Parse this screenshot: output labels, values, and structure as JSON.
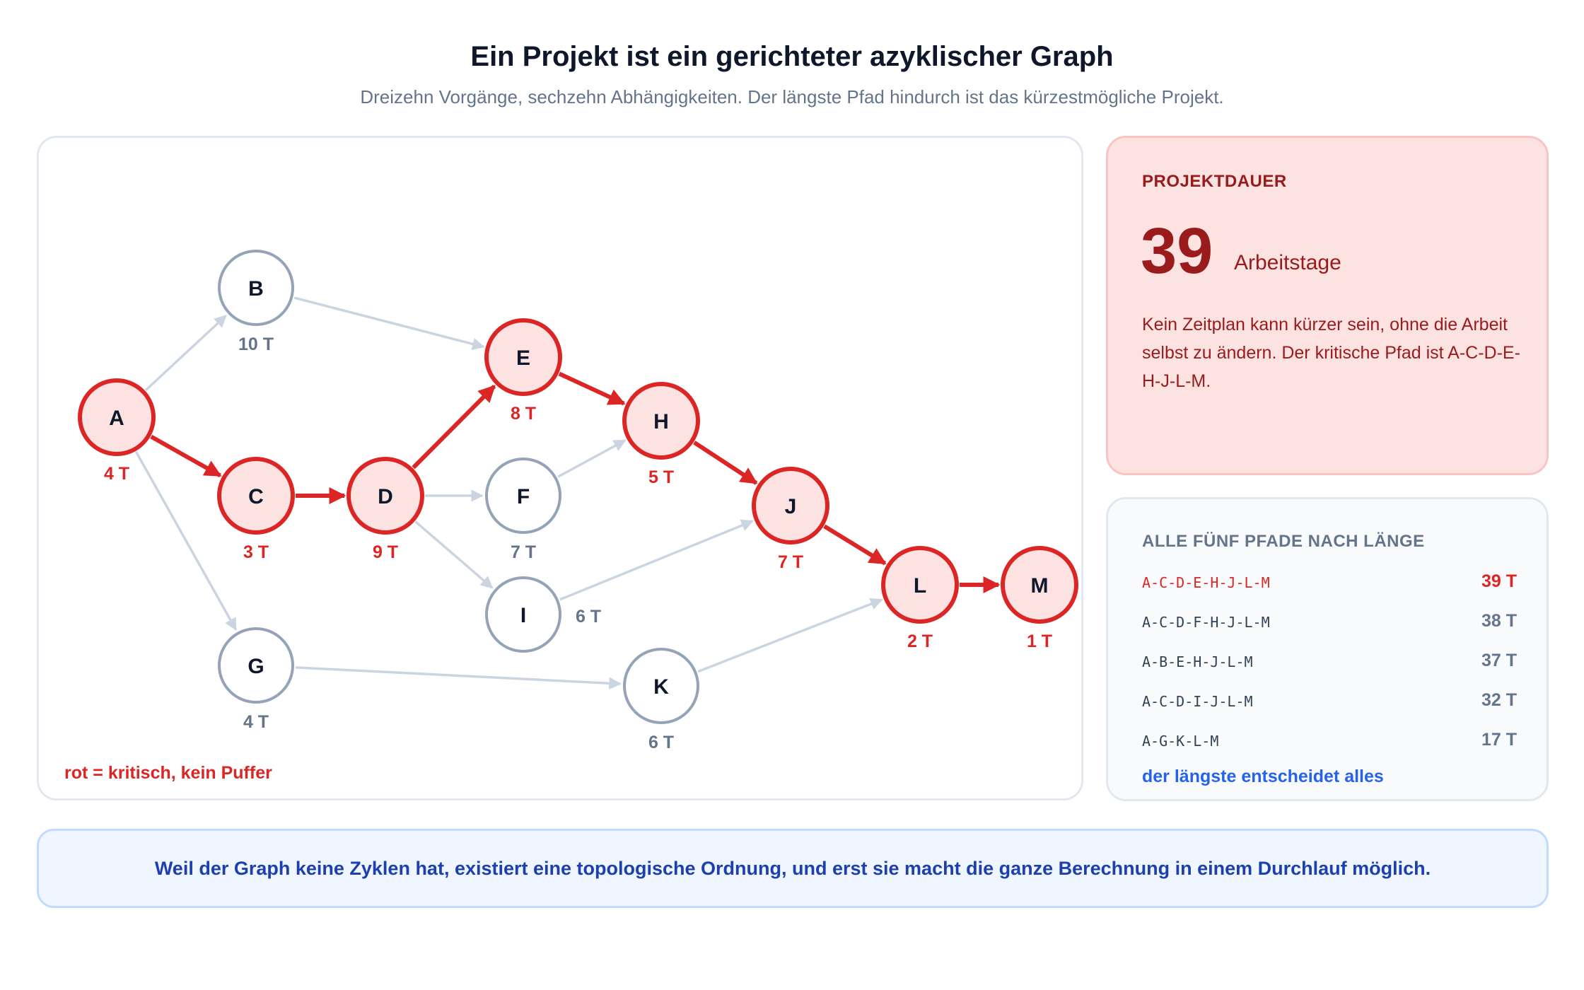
{
  "header": {
    "title": "Ein Projekt ist ein gerichteter azyklischer Graph",
    "subtitle": "Dreizehn Vorgänge, sechzehn Abhängigkeiten. Der längste Pfad hindurch ist das kürzestmögliche Projekt."
  },
  "graph": {
    "legend": "rot = kritisch, kein Puffer",
    "colors": {
      "critical_stroke": "#dc2626",
      "critical_fill": "#fde2e2",
      "normal_stroke": "#94a3b8",
      "normal_fill": "#ffffff",
      "edge_normal": "#cbd5e1",
      "critical_text": "#dc2626",
      "normal_text": "#64748b"
    },
    "nodes": [
      {
        "id": "A",
        "duration": "4 T",
        "critical": true
      },
      {
        "id": "B",
        "duration": "10 T",
        "critical": false
      },
      {
        "id": "C",
        "duration": "3 T",
        "critical": true
      },
      {
        "id": "D",
        "duration": "9 T",
        "critical": true
      },
      {
        "id": "E",
        "duration": "8 T",
        "critical": true
      },
      {
        "id": "F",
        "duration": "7 T",
        "critical": false
      },
      {
        "id": "G",
        "duration": "4 T",
        "critical": false
      },
      {
        "id": "H",
        "duration": "5 T",
        "critical": true
      },
      {
        "id": "I",
        "duration": "6 T",
        "critical": false
      },
      {
        "id": "J",
        "duration": "7 T",
        "critical": true
      },
      {
        "id": "K",
        "duration": "6 T",
        "critical": false
      },
      {
        "id": "L",
        "duration": "2 T",
        "critical": true
      },
      {
        "id": "M",
        "duration": "1 T",
        "critical": true
      }
    ],
    "edges": [
      {
        "from": "A",
        "to": "B",
        "critical": false
      },
      {
        "from": "A",
        "to": "C",
        "critical": true
      },
      {
        "from": "A",
        "to": "G",
        "critical": false
      },
      {
        "from": "B",
        "to": "E",
        "critical": false
      },
      {
        "from": "C",
        "to": "D",
        "critical": true
      },
      {
        "from": "D",
        "to": "E",
        "critical": true
      },
      {
        "from": "D",
        "to": "F",
        "critical": false
      },
      {
        "from": "D",
        "to": "I",
        "critical": false
      },
      {
        "from": "E",
        "to": "H",
        "critical": true
      },
      {
        "from": "F",
        "to": "H",
        "critical": false
      },
      {
        "from": "H",
        "to": "J",
        "critical": true
      },
      {
        "from": "I",
        "to": "J",
        "critical": false
      },
      {
        "from": "G",
        "to": "K",
        "critical": false
      },
      {
        "from": "J",
        "to": "L",
        "critical": true
      },
      {
        "from": "K",
        "to": "L",
        "critical": false
      },
      {
        "from": "L",
        "to": "M",
        "critical": true
      }
    ]
  },
  "duration_card": {
    "label": "PROJEKTDAUER",
    "value": "39",
    "unit": "Arbeitstage",
    "text": "Kein Zeitplan kann kürzer sein, ohne die Arbeit selbst zu ändern. Der kritische Pfad ist A-C-D-E-H-J-L-M."
  },
  "paths_card": {
    "heading": "ALLE FÜNF PFADE NACH LÄNGE",
    "paths": [
      {
        "name": "A-C-D-E-H-J-L-M",
        "length": "39 T",
        "critical": true
      },
      {
        "name": "A-C-D-F-H-J-L-M",
        "length": "38 T",
        "critical": false
      },
      {
        "name": "A-B-E-H-J-L-M",
        "length": "37 T",
        "critical": false
      },
      {
        "name": "A-C-D-I-J-L-M",
        "length": "32 T",
        "critical": false
      },
      {
        "name": "A-G-K-L-M",
        "length": "17 T",
        "critical": false
      }
    ],
    "footer": "der längste entscheidet alles"
  },
  "banner": {
    "text": "Weil der Graph keine Zyklen hat, existiert eine topologische Ordnung, und erst sie macht die ganze Berechnung in einem Durchlauf möglich."
  }
}
